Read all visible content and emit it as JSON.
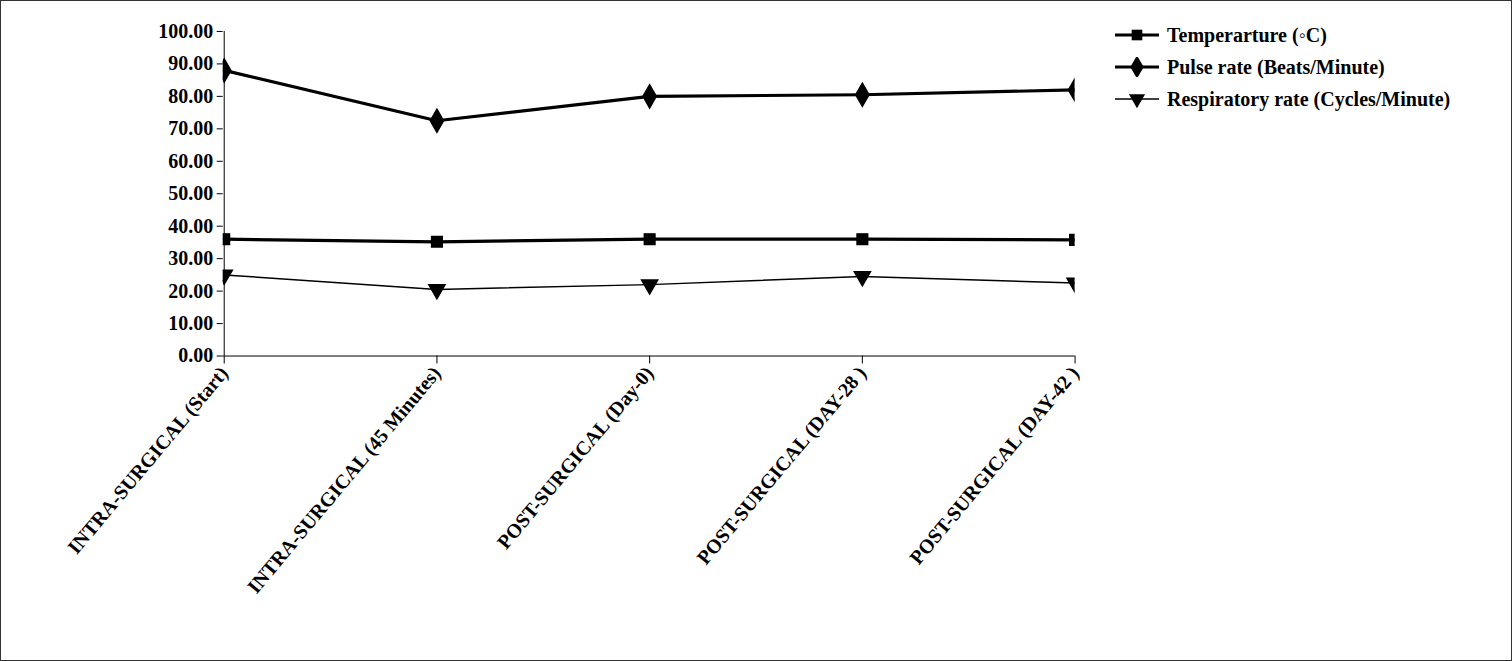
{
  "chart_data": {
    "type": "line",
    "categories": [
      "INTRA-SURGICAL (Start)",
      "INTRA-SURGICAL (45 Minutes)",
      "POST-SURGICAL (Day-0)",
      "POST-SURGICAL (DAY-28 )",
      "POST-SURGICAL (DAY-42 )"
    ],
    "series": [
      {
        "name": "Temperarture (◦C)",
        "color": "#000000",
        "marker": "square",
        "values": [
          36.0,
          35.2,
          36.0,
          36.0,
          35.8
        ]
      },
      {
        "name": "Pulse rate (Beats/Minute)",
        "color": "#000000",
        "marker": "diamond",
        "values": [
          88.0,
          72.5,
          80.0,
          80.5,
          82.0
        ]
      },
      {
        "name": "Respiratory rate (Cycles/Minute)",
        "color": "#000000",
        "marker": "triangle-down",
        "values": [
          25.0,
          20.5,
          22.0,
          24.5,
          22.5
        ]
      }
    ],
    "ylim": [
      0,
      100
    ],
    "yticks": [
      {
        "value": 0,
        "label": "0.00"
      },
      {
        "value": 10,
        "label": "10.00"
      },
      {
        "value": 20,
        "label": "20.00"
      },
      {
        "value": 30,
        "label": "30.00"
      },
      {
        "value": 40,
        "label": "40.00"
      },
      {
        "value": 50,
        "label": "50.00"
      },
      {
        "value": 60,
        "label": "60.00"
      },
      {
        "value": 70,
        "label": "70.00"
      },
      {
        "value": 80,
        "label": "80.00"
      },
      {
        "value": 90,
        "label": "90.00"
      },
      {
        "value": 100,
        "label": "100.00"
      }
    ],
    "grid": false,
    "legend": "right"
  }
}
